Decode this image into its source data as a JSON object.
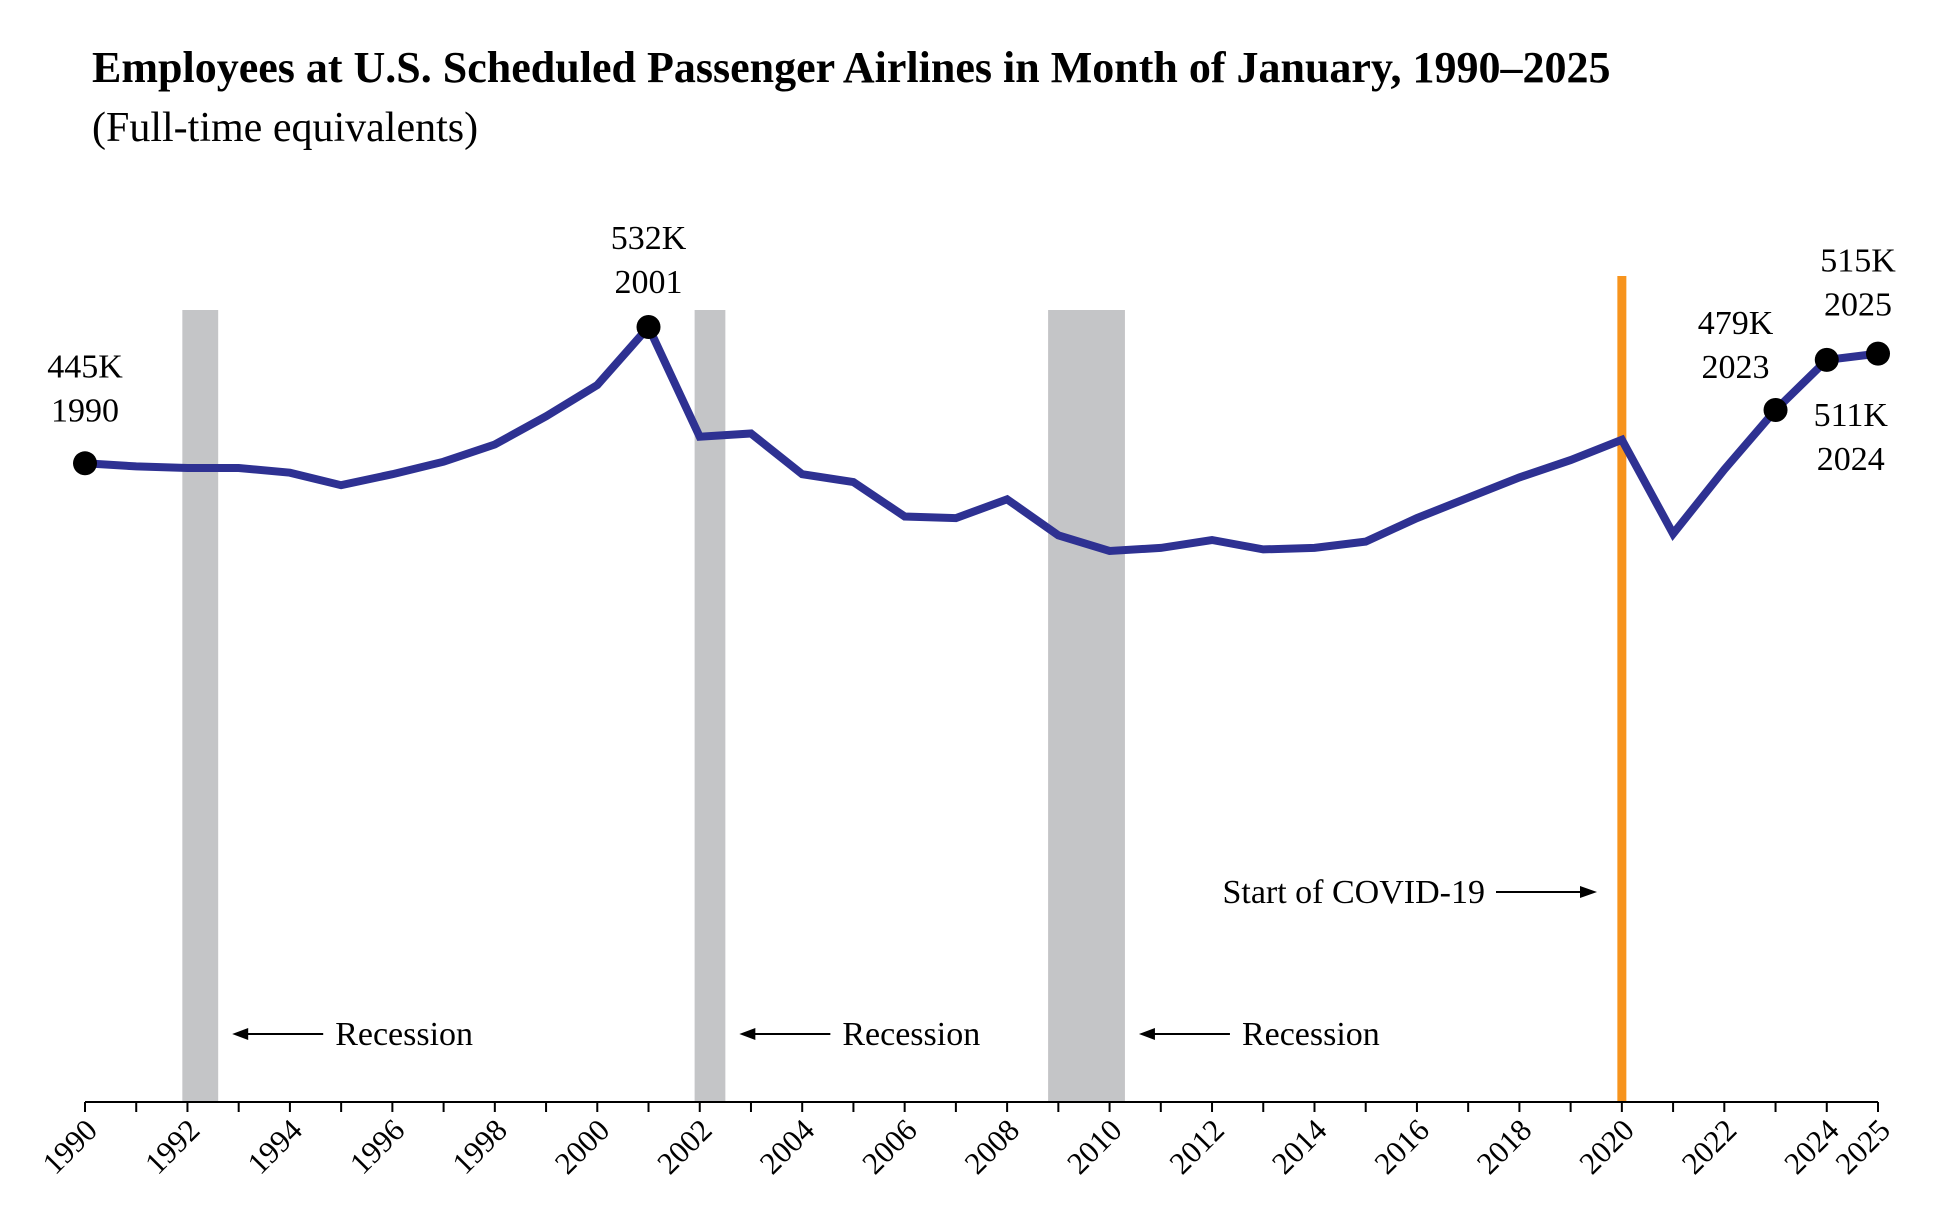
{
  "chart_data": {
    "type": "line",
    "title": "Employees at U.S. Scheduled Passenger Airlines in Month of January, 1990–2025",
    "subtitle": "(Full-time equivalents)",
    "xlabel": "",
    "ylabel": "",
    "xlim": [
      1990,
      2025
    ],
    "ylim": [
      0,
      560
    ],
    "x_tick_labels": [
      "1990",
      "1992",
      "1994",
      "1996",
      "1998",
      "2000",
      "2002",
      "2004",
      "2006",
      "2008",
      "2010",
      "2012",
      "2014",
      "2016",
      "2018",
      "2020",
      "2022",
      "2024",
      "2025"
    ],
    "series": [
      {
        "name": "Employees (thousands, FTE)",
        "color": "#2e3192",
        "x": [
          1990,
          1991,
          1992,
          1993,
          1994,
          1995,
          1996,
          1997,
          1998,
          1999,
          2000,
          2001,
          2002,
          2003,
          2004,
          2005,
          2006,
          2007,
          2008,
          2009,
          2010,
          2011,
          2012,
          2013,
          2014,
          2015,
          2016,
          2017,
          2018,
          2019,
          2020,
          2021,
          2022,
          2023,
          2024,
          2025
        ],
        "values": [
          445,
          443,
          442,
          442,
          439,
          431,
          438,
          446,
          457,
          475,
          495,
          532,
          462,
          464,
          438,
          433,
          411,
          410,
          422,
          399,
          389,
          391,
          396,
          390,
          391,
          395,
          410,
          423,
          436,
          447,
          460,
          400,
          441,
          479,
          511,
          515
        ]
      }
    ],
    "annotations": [
      {
        "x": 1990,
        "value_label": "445K",
        "year_label": "1990"
      },
      {
        "x": 2001,
        "value_label": "532K",
        "year_label": "2001"
      },
      {
        "x": 2023,
        "value_label": "479K",
        "year_label": "2023"
      },
      {
        "x": 2024,
        "value_label": "511K",
        "year_label": "2024"
      },
      {
        "x": 2025,
        "value_label": "515K",
        "year_label": "2025"
      }
    ],
    "recessions": [
      {
        "start": 1991.9,
        "end": 1992.6,
        "label": "Recession"
      },
      {
        "start": 2001.9,
        "end": 2002.5,
        "label": "Recession"
      },
      {
        "start": 2008.8,
        "end": 2010.3,
        "label": "Recession"
      }
    ],
    "covid_marker": {
      "x": 2020,
      "label": "Start of COVID-19",
      "color": "#f7941d"
    },
    "recession_color": "#c4c5c7"
  }
}
